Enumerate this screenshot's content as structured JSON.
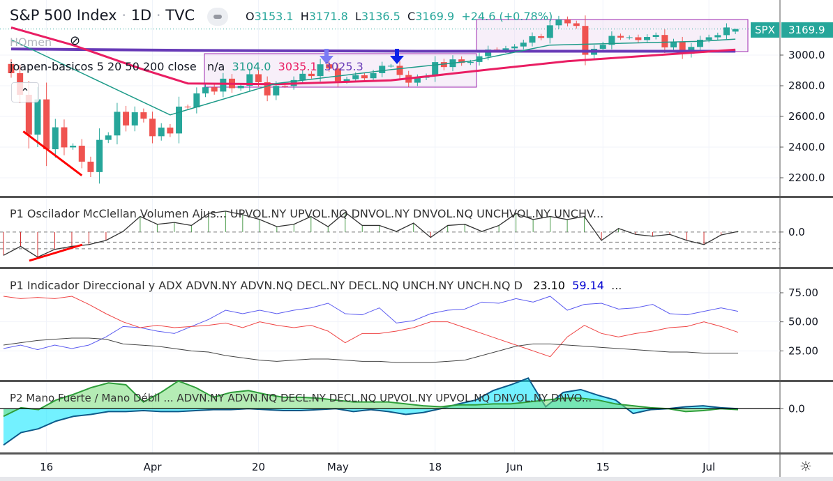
{
  "header": {
    "symbol": "S&P 500 Index",
    "interval": "1D",
    "exchange": "TVC",
    "sep": "·",
    "ohlc": {
      "o_label": "O",
      "o": "3153.1",
      "h_label": "H",
      "h": "3171.8",
      "l_label": "L",
      "l": "3136.5",
      "c_label": "C",
      "c": "3169.9",
      "change": "+24.6 (+0.78%)"
    }
  },
  "overlays": {
    "homen": "HOmen",
    "legend_name": "joapen-basicos 5 20 50 200 close",
    "v_na": "n/a",
    "v_ma20": "3104.0",
    "v_ma50": "3035.1",
    "v_ma200": "3025.3"
  },
  "colors": {
    "up": "#26a69a",
    "down": "#ef5350",
    "ma20": "#1e9b89",
    "ma50": "#e91e63",
    "ma200": "#673ab7",
    "plusdi": "#5b5bf0",
    "minusdi": "#ef4444",
    "adx": "#444444",
    "accent": "#26a69a"
  },
  "price_axis": {
    "labels": [
      "3000.0",
      "2800.0",
      "2600.0",
      "2400.0",
      "2200.0"
    ],
    "symbol_tag": "SPX",
    "last": "3169.9"
  },
  "panes": {
    "osc": {
      "title": "P1 Oscilador McClellan Volumen Ajus...  UPVOL.NY UPVOL.NQ DNVOL.NY DNVOL.NQ UNCHVOL.NY UNCHV...",
      "axis": "0.0"
    },
    "adx": {
      "title": "P1 Indicador Direccional y ADX ADVN.NY ADVN.NQ DECL.NY DECL.NQ UNCH.NY UNCH.NQ D",
      "v1": "23.10",
      "v2": "59.14",
      "more": "...",
      "axis": [
        "75.00",
        "50.00",
        "25.00"
      ]
    },
    "p2": {
      "title": "P2 Mano Fuerte / Mano Débil ...   ADVN.NY ADVN.NQ DECL.NY DECL.NQ UPVOL.NY UPVOL.NQ DNVOL.NY DNVO...",
      "axis": "0.0"
    }
  },
  "time_axis": [
    "16",
    "Apr",
    "20",
    "May",
    "18",
    "Jun",
    "15",
    "Jul"
  ],
  "chart_data": {
    "type": "candlestick",
    "title": "S&P 500 Index · 1D · TVC",
    "ylim": [
      2150,
      3250
    ],
    "last_bar": {
      "open": 3153.1,
      "high": 3171.8,
      "low": 3136.5,
      "close": 3169.9
    },
    "closes": [
      2882,
      2741,
      2481,
      2711,
      2386,
      2529,
      2398,
      2409,
      2305,
      2237,
      2447,
      2476,
      2630,
      2541,
      2627,
      2585,
      2471,
      2527,
      2489,
      2664,
      2659,
      2750,
      2790,
      2762,
      2846,
      2784,
      2800,
      2875,
      2823,
      2737,
      2799,
      2798,
      2837,
      2878,
      2863,
      2940,
      2912,
      2830,
      2843,
      2868,
      2849,
      2882,
      2930,
      2930,
      2870,
      2820,
      2852,
      2864,
      2954,
      2922,
      2972,
      2949,
      2955,
      2992,
      3036,
      3030,
      3044,
      3056,
      3081,
      3123,
      3112,
      3194,
      3232,
      3207,
      3190,
      3002,
      3041,
      3067,
      3125,
      3114,
      3116,
      3098,
      3118,
      3131,
      3050,
      3084,
      3009,
      3053,
      3100,
      3116,
      3130,
      3180,
      3169.9
    ],
    "time_tick_bars": [
      4,
      16,
      28,
      37,
      48,
      57,
      67,
      79
    ],
    "ma20": [
      [
        0,
        3100
      ],
      [
        18,
        2610
      ],
      [
        30,
        2815
      ],
      [
        43,
        2905
      ],
      [
        52,
        2960
      ],
      [
        61,
        3065
      ],
      [
        78,
        3090
      ],
      [
        82,
        3104
      ]
    ],
    "ma50": [
      [
        0,
        3180
      ],
      [
        7,
        3065
      ],
      [
        15,
        2905
      ],
      [
        20,
        2815
      ],
      [
        30,
        2810
      ],
      [
        43,
        2835
      ],
      [
        54,
        2905
      ],
      [
        63,
        2960
      ],
      [
        82,
        3035
      ]
    ],
    "ma200": [
      [
        0,
        3040
      ],
      [
        22,
        3030
      ],
      [
        46,
        3025
      ],
      [
        82,
        3025
      ]
    ],
    "trendline_bars": [
      [
        2,
        2480
      ],
      [
        8,
        2215
      ]
    ],
    "osc": {
      "ylim": [
        -110,
        100
      ],
      "levels": [
        0,
        -34,
        -56
      ],
      "values": [
        -78,
        -48,
        -84,
        -58,
        -48,
        -42,
        -28,
        2,
        52,
        26,
        32,
        22,
        62,
        70,
        58,
        42,
        18,
        26,
        52,
        18,
        66,
        22,
        22,
        2,
        30,
        -18,
        22,
        26,
        2,
        22,
        62,
        42,
        52,
        42,
        52,
        -28,
        12,
        -8,
        -14,
        -8,
        -28,
        -42,
        -10,
        2
      ]
    },
    "adx": {
      "ylim": [
        0,
        90
      ],
      "plus_di": [
        27,
        30,
        26,
        30,
        27,
        30,
        37,
        46,
        45,
        42,
        40,
        46,
        52,
        60,
        57,
        60,
        57,
        60,
        62,
        66,
        57,
        56,
        62,
        49,
        51,
        57,
        60,
        61,
        67,
        66,
        70,
        67,
        72,
        60,
        65,
        66,
        61,
        62,
        65,
        57,
        56,
        59,
        62,
        59
      ],
      "minus_di": [
        72,
        70,
        71,
        70,
        72,
        65,
        57,
        50,
        45,
        47,
        45,
        46,
        47,
        49,
        45,
        50,
        47,
        45,
        47,
        42,
        32,
        40,
        40,
        42,
        45,
        50,
        50,
        45,
        40,
        35,
        30,
        25,
        20,
        37,
        47,
        40,
        37,
        40,
        42,
        45,
        46,
        50,
        46,
        41
      ],
      "adx": [
        30,
        32,
        34,
        35,
        36,
        36,
        35,
        31,
        30,
        29,
        27,
        25,
        24,
        21,
        19,
        17,
        16,
        17,
        18,
        18,
        17,
        16,
        16,
        15,
        15,
        15,
        16,
        17,
        21,
        25,
        29,
        31,
        31,
        30,
        29,
        28,
        27,
        26,
        25,
        24,
        24,
        23,
        23,
        23
      ]
    },
    "p2": {
      "ylim": [
        -45,
        25
      ],
      "strong": [
        -8,
        1,
        -1,
        9,
        15,
        22,
        27,
        25,
        7,
        17,
        29,
        22,
        12,
        17,
        19,
        15,
        12,
        12,
        11,
        9,
        7,
        7,
        7,
        5,
        3,
        2,
        4,
        4,
        5,
        5,
        7,
        9,
        11,
        11,
        9,
        5,
        3,
        1,
        0,
        -3,
        -2,
        0,
        -1
      ],
      "weak": [
        -38,
        -25,
        -21,
        -13,
        -8,
        -6,
        -3,
        -3,
        -2,
        -3,
        -3,
        -2,
        -1,
        -1,
        0,
        -1,
        -2,
        -2,
        -1,
        0,
        -3,
        -1,
        -3,
        -6,
        -4,
        0,
        5,
        9,
        19,
        25,
        32,
        2,
        17,
        20,
        14,
        9,
        -5,
        -1,
        0,
        2,
        3,
        1,
        0
      ]
    }
  }
}
